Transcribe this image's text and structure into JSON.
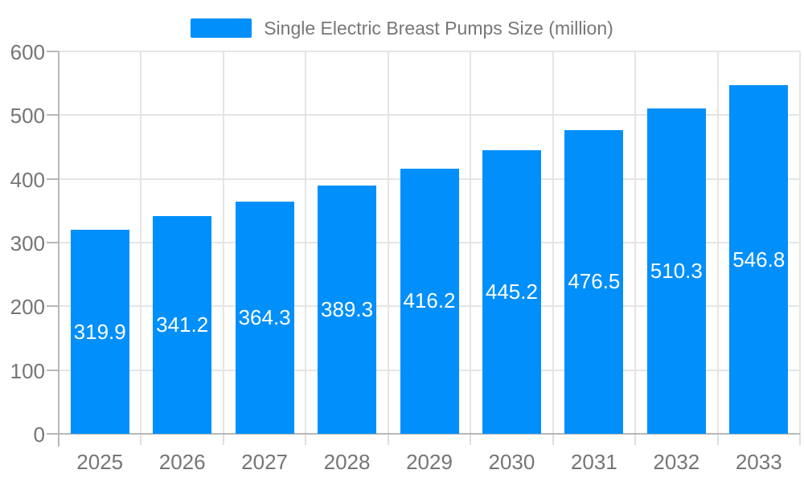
{
  "legend": {
    "label": "Single Electric Breast Pumps Size (million)"
  },
  "chart_data": {
    "type": "bar",
    "title": "Single Electric Breast Pumps Size (million)",
    "categories": [
      "2025",
      "2026",
      "2027",
      "2028",
      "2029",
      "2030",
      "2031",
      "2032",
      "2033"
    ],
    "values": [
      319.9,
      341.2,
      364.3,
      389.3,
      416.2,
      445.2,
      476.5,
      510.3,
      546.8
    ],
    "xlabel": "",
    "ylabel": "",
    "ylim": [
      0,
      600
    ],
    "yticks": [
      0,
      100,
      200,
      300,
      400,
      500,
      600
    ],
    "grid": true,
    "legend_position": "top",
    "colors": {
      "bar": "#008FFB",
      "value_label": "#ffffff",
      "axis_label": "#757575",
      "legend_text": "#777777",
      "gridline": "#e5e5e5",
      "axis_line": "#b8b8b8",
      "boundary_tick": "#dedede"
    }
  }
}
